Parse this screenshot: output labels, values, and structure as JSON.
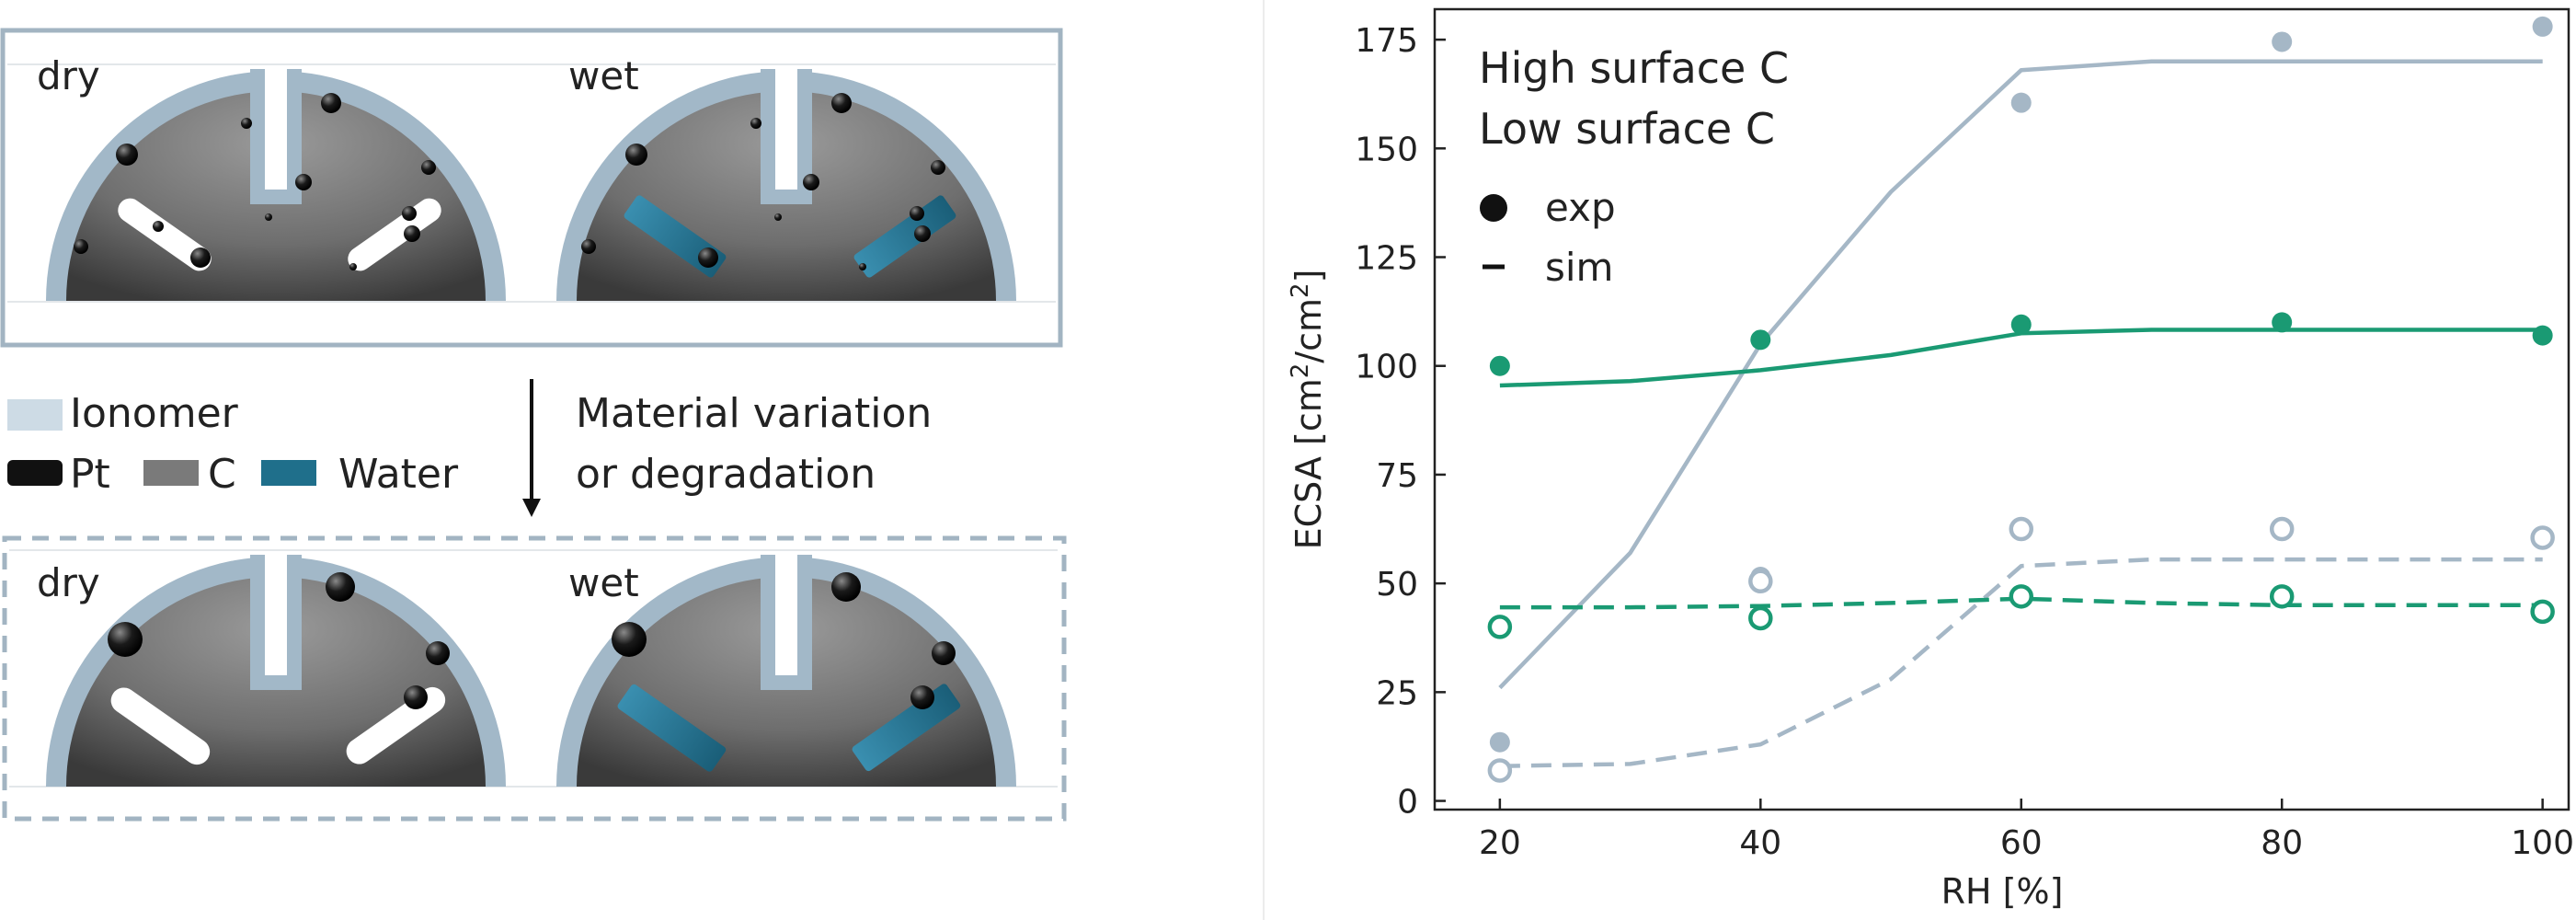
{
  "schematic": {
    "top_panel": {
      "dry_label": "dry",
      "wet_label": "wet"
    },
    "bottom_panel": {
      "dry_label": "dry",
      "wet_label": "wet"
    },
    "legend": {
      "ionomer": "Ionomer",
      "pt": "Pt",
      "c": "C",
      "water": "Water"
    },
    "arrow_label_line1": "Material variation",
    "arrow_label_line2": "or degradation",
    "colors": {
      "ionomer": "#a2b8c8",
      "carbon": "#7a7a7a",
      "water": "#1f6f8b",
      "pt": "#111111"
    }
  },
  "chart_data": {
    "type": "line",
    "xlabel": "RH [%]",
    "ylabel_main": "ECSA [cm",
    "ylabel_sup1": "2",
    "ylabel_mid": "/cm",
    "ylabel_sup2": "2",
    "ylabel_end": "]",
    "xlim": [
      15,
      102
    ],
    "ylim": [
      -2,
      182
    ],
    "xticks": [
      20,
      40,
      60,
      80,
      100
    ],
    "yticks": [
      0,
      25,
      50,
      75,
      100,
      125,
      150,
      175
    ],
    "grid": false,
    "legend_materials": [
      {
        "label": "High surface C",
        "color": "#a5b7c6"
      },
      {
        "label": "Low surface C",
        "color": "#1a9a73"
      }
    ],
    "legend_kinds": [
      {
        "label": "exp",
        "marker": "filled-circle"
      },
      {
        "label": "sim",
        "marker": "dash"
      }
    ],
    "series": [
      {
        "material": "High surface C",
        "color": "#a5b7c6",
        "style": "sim-solid",
        "x": [
          20,
          30,
          40,
          50,
          60,
          70,
          80,
          90,
          100
        ],
        "y": [
          26,
          57,
          105,
          140,
          168,
          170,
          170,
          170,
          170
        ]
      },
      {
        "material": "High surface C",
        "color": "#a5b7c6",
        "style": "sim-dashed",
        "x": [
          20,
          30,
          40,
          50,
          60,
          70,
          80,
          90,
          100
        ],
        "y": [
          8,
          8.5,
          13,
          28,
          54,
          55.5,
          55.5,
          55.5,
          55.5
        ]
      },
      {
        "material": "Low surface C",
        "color": "#1a9a73",
        "style": "sim-solid",
        "x": [
          20,
          30,
          40,
          50,
          60,
          70,
          80,
          90,
          100
        ],
        "y": [
          95.5,
          96.5,
          99,
          102.5,
          107.5,
          108.3,
          108.3,
          108.3,
          108.3
        ]
      },
      {
        "material": "Low surface C",
        "color": "#1a9a73",
        "style": "sim-dashed",
        "x": [
          20,
          30,
          40,
          50,
          60,
          70,
          80,
          90,
          100
        ],
        "y": [
          44.5,
          44.5,
          44.8,
          45.5,
          46.5,
          45.5,
          45,
          45,
          45
        ]
      },
      {
        "material": "High surface C",
        "color": "#a5b7c6",
        "style": "exp-filled",
        "x": [
          20,
          40,
          60,
          80,
          100
        ],
        "y": [
          13.5,
          51.5,
          160.5,
          174.5,
          178
        ]
      },
      {
        "material": "High surface C",
        "color": "#a5b7c6",
        "style": "exp-open",
        "x": [
          20,
          40,
          60,
          80,
          100
        ],
        "y": [
          7,
          50.5,
          62.5,
          62.5,
          60.5
        ]
      },
      {
        "material": "Low surface C",
        "color": "#1a9a73",
        "style": "exp-filled",
        "x": [
          20,
          40,
          60,
          80,
          100
        ],
        "y": [
          100,
          106,
          109.5,
          110,
          107
        ]
      },
      {
        "material": "Low surface C",
        "color": "#1a9a73",
        "style": "exp-open",
        "x": [
          20,
          40,
          60,
          80,
          100
        ],
        "y": [
          40,
          42,
          47,
          47,
          43.5
        ]
      }
    ]
  }
}
